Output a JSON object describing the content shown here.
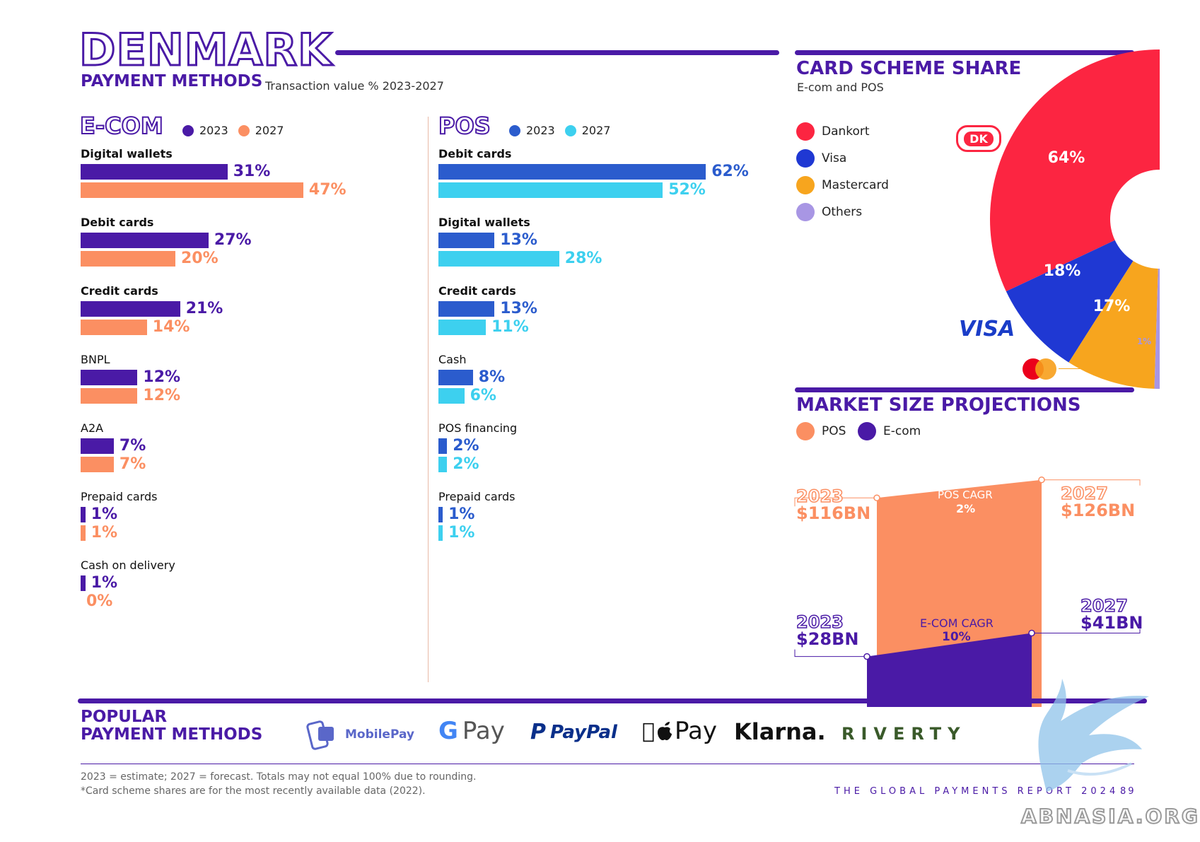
{
  "header": {
    "title": "DENMARK",
    "subtitle": "PAYMENT METHODS",
    "subtitle_note": "Transaction value % 2023-2027"
  },
  "ecom": {
    "heading": "E-COM",
    "legend": [
      {
        "label": "2023",
        "color": "#4a1aa6"
      },
      {
        "label": "2027",
        "color": "#fb8f62"
      }
    ]
  },
  "pos": {
    "heading": "POS",
    "legend": [
      {
        "label": "2023",
        "color": "#2b5ccd"
      },
      {
        "label": "2027",
        "color": "#3dd0ef"
      }
    ]
  },
  "chart_data": [
    {
      "type": "bar",
      "title": "E-COM",
      "categories": [
        "Digital wallets",
        "Debit cards",
        "Credit cards",
        "BNPL",
        "A2A",
        "Prepaid cards",
        "Cash on delivery"
      ],
      "series": [
        {
          "name": "2023",
          "values": [
            31,
            27,
            21,
            12,
            7,
            1,
            1
          ],
          "labels": [
            "31%",
            "27%",
            "21%",
            "12%",
            "7%",
            "1%",
            "1%"
          ],
          "color": "#4a1aa6"
        },
        {
          "name": "2027",
          "values": [
            47,
            20,
            14,
            12,
            7,
            1,
            0
          ],
          "labels": [
            "47%",
            "20%",
            "14%",
            "12%",
            "7%",
            "1%",
            "0%"
          ],
          "color": "#fb8f62"
        }
      ],
      "bold_categories": [
        "Digital wallets",
        "Debit cards",
        "Credit cards"
      ]
    },
    {
      "type": "bar",
      "title": "POS",
      "categories": [
        "Debit cards",
        "Digital wallets",
        "Credit cards",
        "Cash",
        "POS financing",
        "Prepaid cards"
      ],
      "series": [
        {
          "name": "2023",
          "values": [
            62,
            13,
            13,
            8,
            2,
            1
          ],
          "labels": [
            "62%",
            "13%",
            "13%",
            "8%",
            "2%",
            "1%"
          ],
          "color": "#2b5ccd"
        },
        {
          "name": "2027",
          "values": [
            52,
            28,
            11,
            6,
            2,
            1
          ],
          "labels": [
            "52%",
            "28%",
            "11%",
            "6%",
            "2%",
            "1%"
          ],
          "color": "#3dd0ef"
        }
      ],
      "bold_categories": [
        "Debit cards",
        "Digital wallets",
        "Credit cards"
      ]
    },
    {
      "type": "pie",
      "title": "CARD SCHEME SHARE",
      "subtitle": "E-com and POS",
      "slices": [
        {
          "name": "Dankort",
          "value": 64,
          "label": "64%",
          "color": "#fc2541"
        },
        {
          "name": "Visa",
          "value": 18,
          "label": "18%",
          "color": "#1f38d3"
        },
        {
          "name": "Mastercard",
          "value": 17,
          "label": "17%",
          "color": "#f7a51e"
        },
        {
          "name": "Others",
          "value": 1,
          "label": "1%",
          "color": "#a896e4"
        }
      ]
    },
    {
      "type": "area",
      "title": "MARKET SIZE PROJECTIONS",
      "legend": [
        {
          "label": "POS",
          "color": "#fb8f62"
        },
        {
          "label": "E-com",
          "color": "#4a1aa6"
        }
      ],
      "x": [
        "2023",
        "2027"
      ],
      "series": [
        {
          "name": "POS",
          "values": [
            116,
            126
          ],
          "labels": [
            "$116BN",
            "$126BN"
          ],
          "cagr_label": "POS CAGR",
          "cagr": "2%",
          "color": "#fb8f62"
        },
        {
          "name": "E-com",
          "values": [
            28,
            41
          ],
          "labels": [
            "$28BN",
            "$41BN"
          ],
          "cagr_label": "E-COM CAGR",
          "cagr": "10%",
          "color": "#4a1aa6"
        }
      ]
    }
  ],
  "card_scheme": {
    "heading": "CARD SCHEME SHARE",
    "sub": "E-com and POS",
    "dankort_logo_text": "DK",
    "visa_logo_text": "VISA"
  },
  "market": {
    "heading": "MARKET SIZE PROJECTIONS",
    "pos_2023_year": "2023",
    "pos_2023_value": "$116BN",
    "pos_2027_year": "2027",
    "pos_2027_value": "$126BN",
    "ecom_2023_year": "2023",
    "ecom_2023_value": "$28BN",
    "ecom_2027_year": "2027",
    "ecom_2027_value": "$41BN",
    "pos_cagr_label": "POS CAGR",
    "pos_cagr": "2%",
    "ecom_cagr_label": "E-COM CAGR",
    "ecom_cagr": "10%"
  },
  "popular": {
    "heading_line1": "POPULAR",
    "heading_line2": "PAYMENT METHODS",
    "logos": [
      "MobilePay",
      "G Pay",
      "PayPal",
      "Pay",
      "Klarna.",
      "RIVERTY"
    ]
  },
  "footer": {
    "note1": "2023 = estimate; 2027 = forecast. Totals may not equal 100% due to rounding.",
    "note2": "*Card scheme shares are for the most recently available data (2022).",
    "report": "THE GLOBAL PAYMENTS REPORT 2024",
    "page": "89",
    "watermark": "ABNASIA.ORG"
  }
}
